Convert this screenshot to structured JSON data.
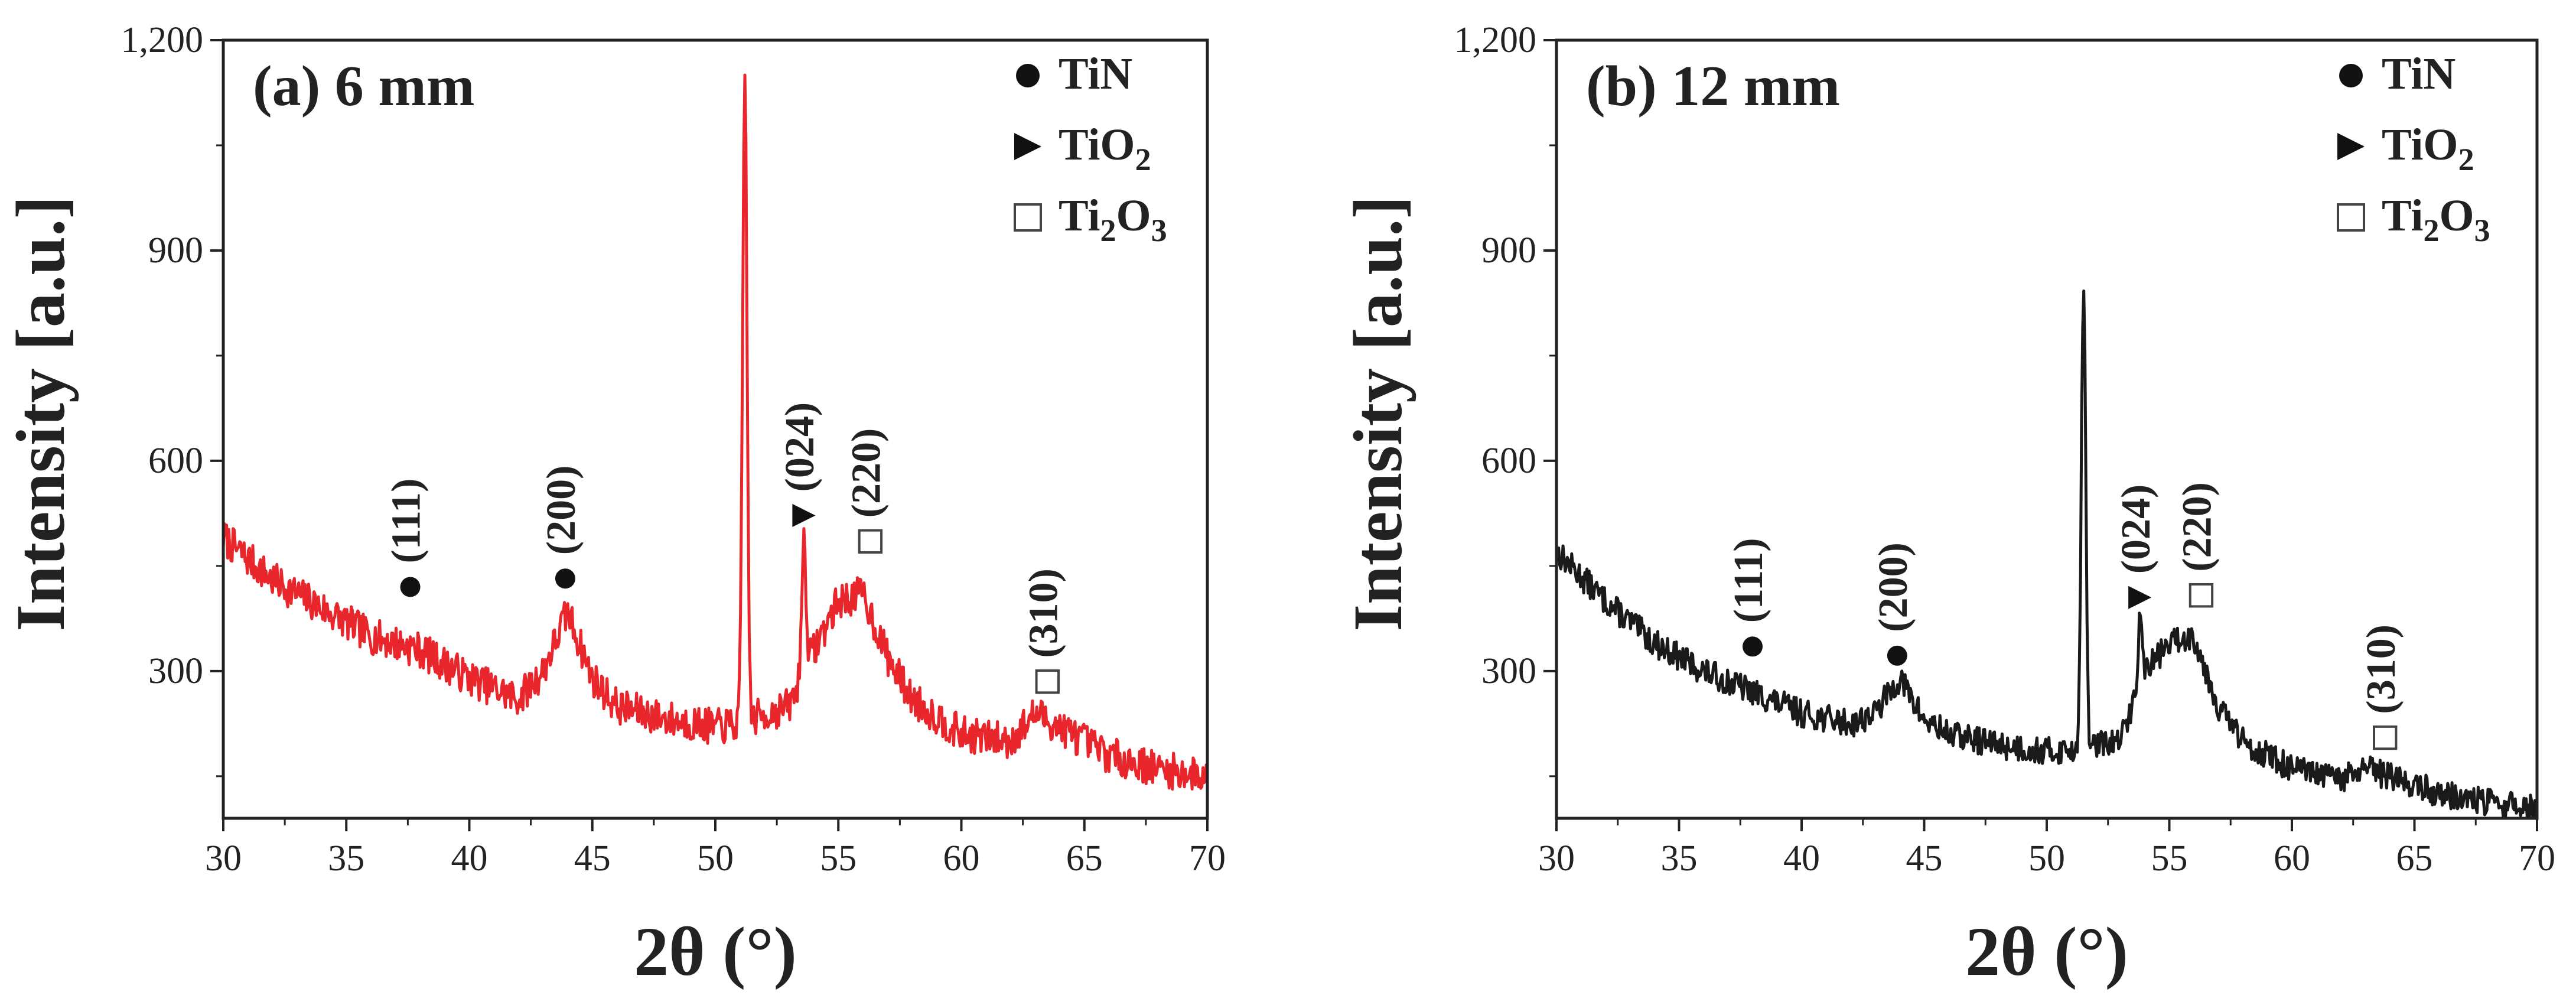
{
  "chart_data": [
    {
      "type": "line",
      "panel_label": "(a) 6 mm",
      "series_color": "#e8262b",
      "xlabel": "2θ (°)",
      "ylabel": "Intensity [a.u.]",
      "xlim": [
        30,
        70
      ],
      "ylim": [
        90,
        1200
      ],
      "x_ticks": [
        "30",
        "35",
        "40",
        "45",
        "50",
        "55",
        "60",
        "65",
        "70"
      ],
      "y_ticks": [
        "300",
        "600",
        "900",
        "1,200"
      ],
      "legend": [
        {
          "marker": "circle",
          "label": "TiN"
        },
        {
          "marker": "triangle",
          "label": "TiO",
          "sub": "2"
        },
        {
          "marker": "square",
          "label": "Ti",
          "sub": "2",
          "label2": "O",
          "sub2": "3"
        }
      ],
      "series": [
        {
          "name": "6 mm",
          "profile": [
            [
              30,
              490
            ],
            [
              32,
              430
            ],
            [
              34,
              390
            ],
            [
              36,
              350
            ],
            [
              38,
              330
            ],
            [
              40,
              290
            ],
            [
              42,
              260
            ],
            [
              43,
              300
            ],
            [
              44,
              385
            ],
            [
              45,
              290
            ],
            [
              46,
              250
            ],
            [
              48,
              232
            ],
            [
              50,
              220
            ],
            [
              51,
              225
            ],
            [
              53,
              250
            ],
            [
              54,
              330
            ],
            [
              55,
              400
            ],
            [
              56,
              410
            ],
            [
              57,
              320
            ],
            [
              58,
              260
            ],
            [
              60,
              210
            ],
            [
              62,
              200
            ],
            [
              63,
              240
            ],
            [
              64,
              220
            ],
            [
              66,
              180
            ],
            [
              68,
              160
            ],
            [
              70,
              150
            ]
          ],
          "sharp_peaks": [
            {
              "x": 51.2,
              "y": 1150
            },
            {
              "x": 53.6,
              "y": 485
            }
          ],
          "noise": 26,
          "seed": 7
        }
      ],
      "annotations": [
        {
          "x": 37.6,
          "marker": "circle",
          "text": "(111)",
          "marker_y": 420
        },
        {
          "x": 43.9,
          "marker": "circle",
          "text": "(200)",
          "marker_y": 432
        },
        {
          "x": 53.6,
          "marker": "triangle",
          "text": "(024)",
          "marker_y": 522
        },
        {
          "x": 56.3,
          "marker": "square",
          "text": "(220)",
          "marker_y": 485
        },
        {
          "x": 63.5,
          "marker": "square",
          "text": "(310)",
          "marker_y": 285
        }
      ]
    },
    {
      "type": "line",
      "panel_label": "(b) 12 mm",
      "series_color": "#1a1a1a",
      "xlabel": "2θ (°)",
      "ylabel": "Intensity [a.u.]",
      "xlim": [
        30,
        70
      ],
      "ylim": [
        90,
        1200
      ],
      "x_ticks": [
        "30",
        "35",
        "40",
        "45",
        "50",
        "55",
        "60",
        "65",
        "70"
      ],
      "y_ticks": [
        "300",
        "600",
        "900",
        "1,200"
      ],
      "legend": [
        {
          "marker": "circle",
          "label": "TiN"
        },
        {
          "marker": "triangle",
          "label": "TiO",
          "sub": "2"
        },
        {
          "marker": "square",
          "label": "Ti",
          "sub": "2",
          "label2": "O",
          "sub2": "3"
        }
      ],
      "series": [
        {
          "name": "12 mm",
          "profile": [
            [
              30,
              470
            ],
            [
              32,
              400
            ],
            [
              34,
              340
            ],
            [
              36,
              300
            ],
            [
              38,
              270
            ],
            [
              40,
              240
            ],
            [
              42,
              225
            ],
            [
              43,
              240
            ],
            [
              44,
              290
            ],
            [
              45,
              230
            ],
            [
              46,
              210
            ],
            [
              48,
              195
            ],
            [
              50,
              185
            ],
            [
              51,
              188
            ],
            [
              53,
              200
            ],
            [
              54,
              300
            ],
            [
              55,
              340
            ],
            [
              56,
              350
            ],
            [
              57,
              250
            ],
            [
              58,
              200
            ],
            [
              60,
              160
            ],
            [
              62,
              145
            ],
            [
              63,
              160
            ],
            [
              64,
              150
            ],
            [
              66,
              125
            ],
            [
              68,
              112
            ],
            [
              70,
              105
            ]
          ],
          "sharp_peaks": [
            {
              "x": 51.5,
              "y": 850
            },
            {
              "x": 53.8,
              "y": 370
            }
          ],
          "noise": 20,
          "seed": 13
        }
      ],
      "annotations": [
        {
          "x": 38.0,
          "marker": "circle",
          "text": "(111)",
          "marker_y": 335
        },
        {
          "x": 43.9,
          "marker": "circle",
          "text": "(200)",
          "marker_y": 322
        },
        {
          "x": 53.8,
          "marker": "triangle",
          "text": "(024)",
          "marker_y": 405
        },
        {
          "x": 56.3,
          "marker": "square",
          "text": "(220)",
          "marker_y": 408
        },
        {
          "x": 63.8,
          "marker": "square",
          "text": "(310)",
          "marker_y": 205
        }
      ]
    }
  ]
}
